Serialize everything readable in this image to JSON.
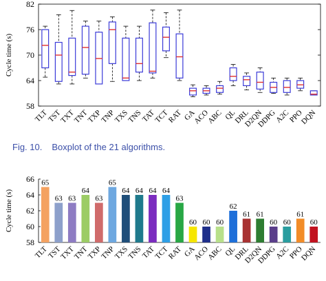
{
  "figure_caption": {
    "number": "Fig. 10.",
    "text": "Boxplot of the 21 algorithms."
  },
  "chart_data": [
    {
      "type": "box",
      "ylabel": "Cycle time (s)",
      "ylim": [
        58,
        82
      ],
      "yticks": [
        58,
        64,
        70,
        76,
        82
      ],
      "grid": false,
      "box_color": "#3a3ad8",
      "median_color": "#e03030",
      "categories": [
        "TLT",
        "TST",
        "TXT",
        "TNT",
        "TXP",
        "TNP",
        "TXS",
        "TNS",
        "TAT",
        "TCT",
        "RAT",
        "GA",
        "ACO",
        "ABC",
        "QL",
        "DRL",
        "D2QN",
        "DDPG",
        "A2C",
        "PPO",
        "DQN"
      ],
      "boxes": [
        {
          "min": 64.8,
          "q1": 67.0,
          "median": 72.3,
          "q3": 76.0,
          "max": 76.8
        },
        {
          "min": 63.2,
          "q1": 63.8,
          "median": 70.0,
          "q3": 73.0,
          "max": 79.5
        },
        {
          "min": 63.2,
          "q1": 65.2,
          "median": 66.0,
          "q3": 74.0,
          "max": 80.5
        },
        {
          "min": 64.6,
          "q1": 65.5,
          "median": 71.8,
          "q3": 76.8,
          "max": 78.0
        },
        {
          "min": 63.2,
          "q1": 63.2,
          "median": 69.2,
          "q3": 75.4,
          "max": 78.0
        },
        {
          "min": 63.8,
          "q1": 68.0,
          "median": 76.0,
          "q3": 77.8,
          "max": 79.0
        },
        {
          "min": 64.0,
          "q1": 64.0,
          "median": 64.6,
          "q3": 74.0,
          "max": 76.8
        },
        {
          "min": 64.0,
          "q1": 66.0,
          "median": 68.0,
          "q3": 74.0,
          "max": 76.8
        },
        {
          "min": 64.6,
          "q1": 65.8,
          "median": 66.2,
          "q3": 77.6,
          "max": 80.6
        },
        {
          "min": 69.4,
          "q1": 71.0,
          "median": 74.2,
          "q3": 76.6,
          "max": 80.0
        },
        {
          "min": 64.0,
          "q1": 64.6,
          "median": 69.6,
          "q3": 75.0,
          "max": 80.6
        },
        {
          "min": 60.2,
          "q1": 60.6,
          "median": 61.6,
          "q3": 62.2,
          "max": 63.0
        },
        {
          "min": 60.6,
          "q1": 61.0,
          "median": 61.6,
          "q3": 62.2,
          "max": 62.8
        },
        {
          "min": 60.8,
          "q1": 61.2,
          "median": 62.2,
          "q3": 62.8,
          "max": 63.8
        },
        {
          "min": 62.8,
          "q1": 64.0,
          "median": 65.0,
          "q3": 67.0,
          "max": 67.8
        },
        {
          "min": 61.8,
          "q1": 62.8,
          "median": 64.2,
          "q3": 65.0,
          "max": 65.8
        },
        {
          "min": 61.2,
          "q1": 62.0,
          "median": 63.6,
          "q3": 66.0,
          "max": 67.0
        },
        {
          "min": 61.0,
          "q1": 61.2,
          "median": 62.4,
          "q3": 63.6,
          "max": 64.6
        },
        {
          "min": 60.6,
          "q1": 61.2,
          "median": 62.4,
          "q3": 64.0,
          "max": 64.6
        },
        {
          "min": 61.6,
          "q1": 62.2,
          "median": 63.0,
          "q3": 64.0,
          "max": 64.6
        },
        {
          "min": 60.6,
          "q1": 60.6,
          "median": 60.8,
          "q3": 61.6,
          "max": 61.6
        }
      ]
    },
    {
      "type": "bar",
      "ylabel": "Cycle time (s)",
      "ylim": [
        58,
        66
      ],
      "yticks": [
        58,
        60,
        62,
        64,
        66
      ],
      "grid": false,
      "categories": [
        "TLT",
        "TST",
        "TXT",
        "TNT",
        "TXP",
        "TNP",
        "TXS",
        "TNS",
        "TAT",
        "TCT",
        "RAT",
        "GA",
        "ACO",
        "ABC",
        "QL",
        "DRL",
        "D2QN",
        "DDPG",
        "A2C",
        "PPO",
        "DQN"
      ],
      "values": [
        65,
        63,
        63,
        64,
        63,
        65,
        64,
        64,
        64,
        64,
        63,
        60,
        60,
        60,
        62,
        61,
        61,
        60,
        60,
        61,
        60
      ],
      "colors": [
        "#f4a261",
        "#8da0cb",
        "#8e7cc3",
        "#9ccc65",
        "#d06b6b",
        "#6ea8e0",
        "#1f4e79",
        "#1f7a8c",
        "#7b2cbf",
        "#2e9fe6",
        "#28a745",
        "#f6e600",
        "#1f2f8a",
        "#b8e08a",
        "#1e6fd9",
        "#a83232",
        "#2e7d32",
        "#5a3e8a",
        "#2a9d9f",
        "#f28c28",
        "#c1121f"
      ]
    }
  ]
}
